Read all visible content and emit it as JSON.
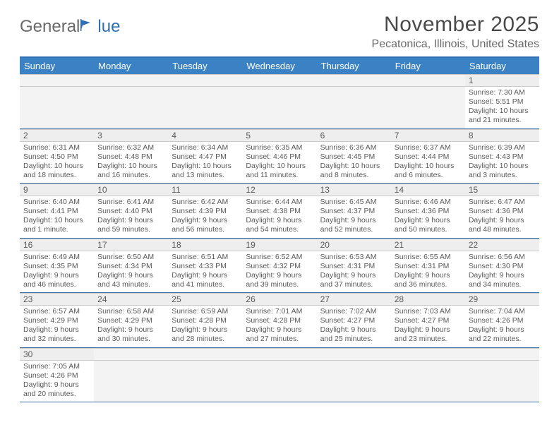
{
  "logo": {
    "part1": "General",
    "part2": "lue"
  },
  "title": "November 2025",
  "location": "Pecatonica, Illinois, United States",
  "colors": {
    "header_bg": "#3b82c4",
    "header_text": "#ffffff",
    "accent_border": "#2f6fb3",
    "daynum_bg": "#eeeeee",
    "blank_bg": "#f3f3f3",
    "row_divider": "#3b6fa8",
    "text": "#5a5a5a",
    "title_text": "#4a4a4a",
    "location_text": "#6a6a6a"
  },
  "day_headers": [
    "Sunday",
    "Monday",
    "Tuesday",
    "Wednesday",
    "Thursday",
    "Friday",
    "Saturday"
  ],
  "weeks": [
    [
      null,
      null,
      null,
      null,
      null,
      null,
      {
        "n": "1",
        "l1": "Sunrise: 7:30 AM",
        "l2": "Sunset: 5:51 PM",
        "l3": "Daylight: 10 hours",
        "l4": "and 21 minutes."
      }
    ],
    [
      {
        "n": "2",
        "l1": "Sunrise: 6:31 AM",
        "l2": "Sunset: 4:50 PM",
        "l3": "Daylight: 10 hours",
        "l4": "and 18 minutes."
      },
      {
        "n": "3",
        "l1": "Sunrise: 6:32 AM",
        "l2": "Sunset: 4:48 PM",
        "l3": "Daylight: 10 hours",
        "l4": "and 16 minutes."
      },
      {
        "n": "4",
        "l1": "Sunrise: 6:34 AM",
        "l2": "Sunset: 4:47 PM",
        "l3": "Daylight: 10 hours",
        "l4": "and 13 minutes."
      },
      {
        "n": "5",
        "l1": "Sunrise: 6:35 AM",
        "l2": "Sunset: 4:46 PM",
        "l3": "Daylight: 10 hours",
        "l4": "and 11 minutes."
      },
      {
        "n": "6",
        "l1": "Sunrise: 6:36 AM",
        "l2": "Sunset: 4:45 PM",
        "l3": "Daylight: 10 hours",
        "l4": "and 8 minutes."
      },
      {
        "n": "7",
        "l1": "Sunrise: 6:37 AM",
        "l2": "Sunset: 4:44 PM",
        "l3": "Daylight: 10 hours",
        "l4": "and 6 minutes."
      },
      {
        "n": "8",
        "l1": "Sunrise: 6:39 AM",
        "l2": "Sunset: 4:43 PM",
        "l3": "Daylight: 10 hours",
        "l4": "and 3 minutes."
      }
    ],
    [
      {
        "n": "9",
        "l1": "Sunrise: 6:40 AM",
        "l2": "Sunset: 4:41 PM",
        "l3": "Daylight: 10 hours",
        "l4": "and 1 minute."
      },
      {
        "n": "10",
        "l1": "Sunrise: 6:41 AM",
        "l2": "Sunset: 4:40 PM",
        "l3": "Daylight: 9 hours",
        "l4": "and 59 minutes."
      },
      {
        "n": "11",
        "l1": "Sunrise: 6:42 AM",
        "l2": "Sunset: 4:39 PM",
        "l3": "Daylight: 9 hours",
        "l4": "and 56 minutes."
      },
      {
        "n": "12",
        "l1": "Sunrise: 6:44 AM",
        "l2": "Sunset: 4:38 PM",
        "l3": "Daylight: 9 hours",
        "l4": "and 54 minutes."
      },
      {
        "n": "13",
        "l1": "Sunrise: 6:45 AM",
        "l2": "Sunset: 4:37 PM",
        "l3": "Daylight: 9 hours",
        "l4": "and 52 minutes."
      },
      {
        "n": "14",
        "l1": "Sunrise: 6:46 AM",
        "l2": "Sunset: 4:36 PM",
        "l3": "Daylight: 9 hours",
        "l4": "and 50 minutes."
      },
      {
        "n": "15",
        "l1": "Sunrise: 6:47 AM",
        "l2": "Sunset: 4:36 PM",
        "l3": "Daylight: 9 hours",
        "l4": "and 48 minutes."
      }
    ],
    [
      {
        "n": "16",
        "l1": "Sunrise: 6:49 AM",
        "l2": "Sunset: 4:35 PM",
        "l3": "Daylight: 9 hours",
        "l4": "and 46 minutes."
      },
      {
        "n": "17",
        "l1": "Sunrise: 6:50 AM",
        "l2": "Sunset: 4:34 PM",
        "l3": "Daylight: 9 hours",
        "l4": "and 43 minutes."
      },
      {
        "n": "18",
        "l1": "Sunrise: 6:51 AM",
        "l2": "Sunset: 4:33 PM",
        "l3": "Daylight: 9 hours",
        "l4": "and 41 minutes."
      },
      {
        "n": "19",
        "l1": "Sunrise: 6:52 AM",
        "l2": "Sunset: 4:32 PM",
        "l3": "Daylight: 9 hours",
        "l4": "and 39 minutes."
      },
      {
        "n": "20",
        "l1": "Sunrise: 6:53 AM",
        "l2": "Sunset: 4:31 PM",
        "l3": "Daylight: 9 hours",
        "l4": "and 37 minutes."
      },
      {
        "n": "21",
        "l1": "Sunrise: 6:55 AM",
        "l2": "Sunset: 4:31 PM",
        "l3": "Daylight: 9 hours",
        "l4": "and 36 minutes."
      },
      {
        "n": "22",
        "l1": "Sunrise: 6:56 AM",
        "l2": "Sunset: 4:30 PM",
        "l3": "Daylight: 9 hours",
        "l4": "and 34 minutes."
      }
    ],
    [
      {
        "n": "23",
        "l1": "Sunrise: 6:57 AM",
        "l2": "Sunset: 4:29 PM",
        "l3": "Daylight: 9 hours",
        "l4": "and 32 minutes."
      },
      {
        "n": "24",
        "l1": "Sunrise: 6:58 AM",
        "l2": "Sunset: 4:29 PM",
        "l3": "Daylight: 9 hours",
        "l4": "and 30 minutes."
      },
      {
        "n": "25",
        "l1": "Sunrise: 6:59 AM",
        "l2": "Sunset: 4:28 PM",
        "l3": "Daylight: 9 hours",
        "l4": "and 28 minutes."
      },
      {
        "n": "26",
        "l1": "Sunrise: 7:01 AM",
        "l2": "Sunset: 4:28 PM",
        "l3": "Daylight: 9 hours",
        "l4": "and 27 minutes."
      },
      {
        "n": "27",
        "l1": "Sunrise: 7:02 AM",
        "l2": "Sunset: 4:27 PM",
        "l3": "Daylight: 9 hours",
        "l4": "and 25 minutes."
      },
      {
        "n": "28",
        "l1": "Sunrise: 7:03 AM",
        "l2": "Sunset: 4:27 PM",
        "l3": "Daylight: 9 hours",
        "l4": "and 23 minutes."
      },
      {
        "n": "29",
        "l1": "Sunrise: 7:04 AM",
        "l2": "Sunset: 4:26 PM",
        "l3": "Daylight: 9 hours",
        "l4": "and 22 minutes."
      }
    ],
    [
      {
        "n": "30",
        "l1": "Sunrise: 7:05 AM",
        "l2": "Sunset: 4:26 PM",
        "l3": "Daylight: 9 hours",
        "l4": "and 20 minutes."
      },
      null,
      null,
      null,
      null,
      null,
      null
    ]
  ]
}
